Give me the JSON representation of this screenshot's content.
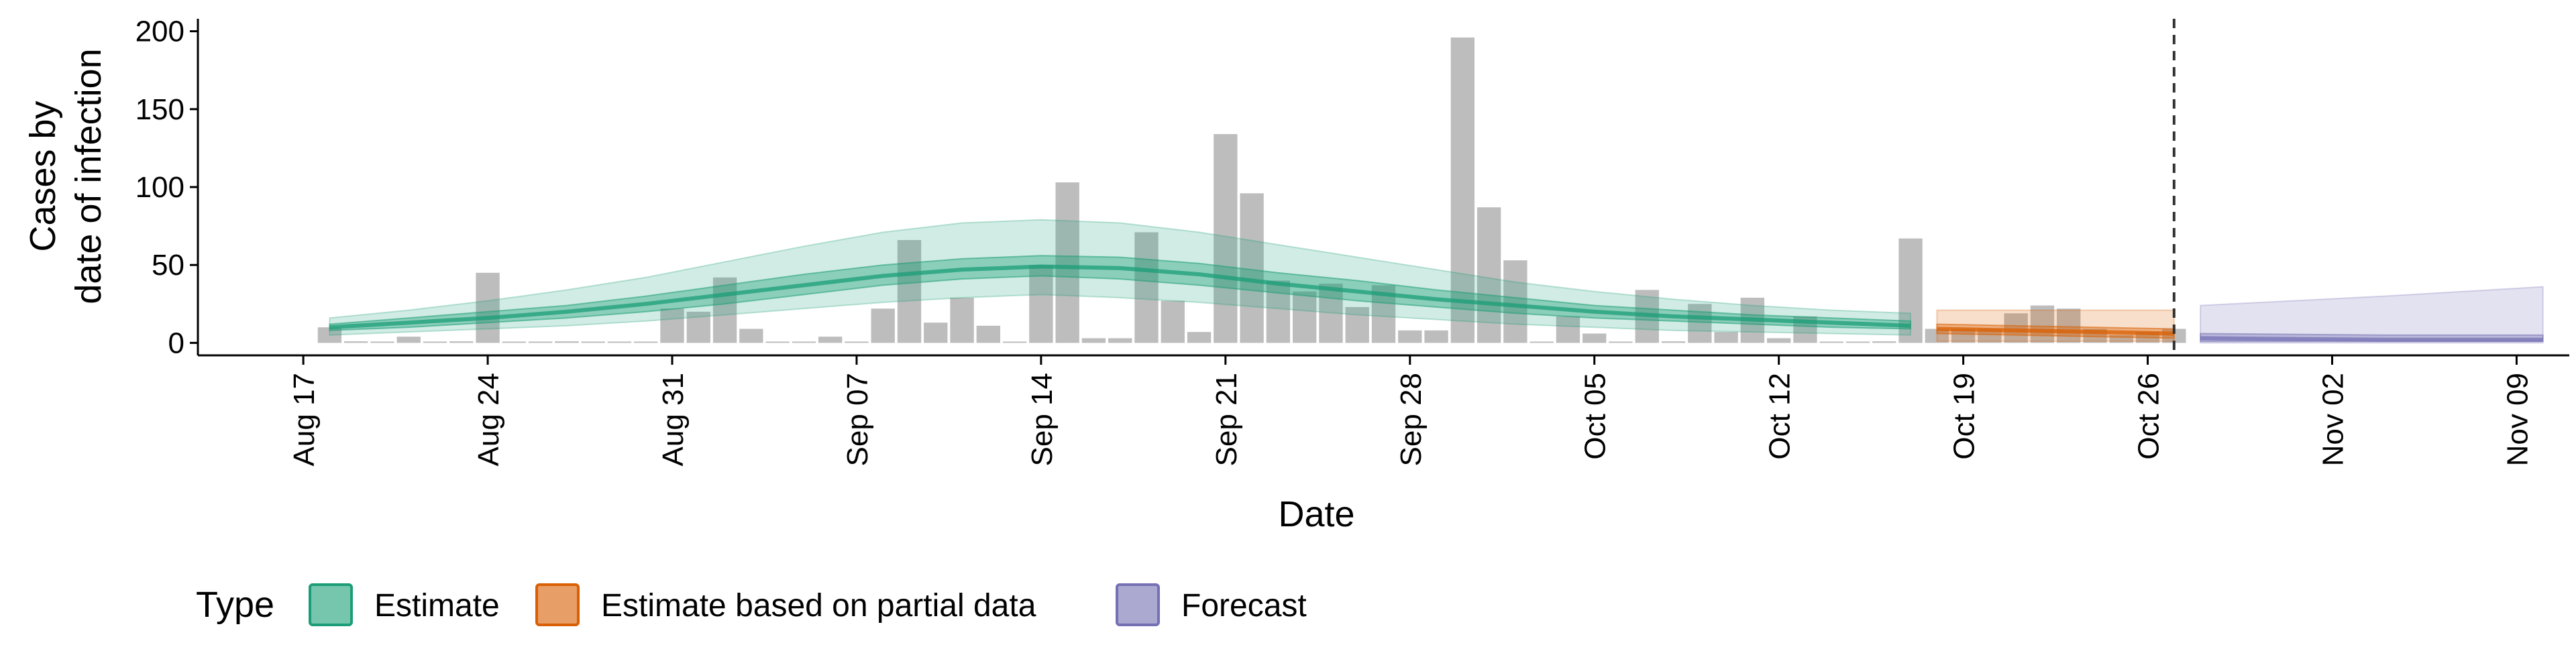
{
  "chart_data": {
    "type": "bar",
    "xlabel": "Date",
    "ylabel_lines": [
      "Cases by",
      "date of infection"
    ],
    "ylim": [
      -8,
      208
    ],
    "y_ticks": [
      0,
      50,
      100,
      150,
      200
    ],
    "x_range_days": [
      -4,
      86
    ],
    "x_tick_labels": [
      "Aug 17",
      "Aug 24",
      "Aug 31",
      "Sep 07",
      "Sep 14",
      "Sep 21",
      "Sep 28",
      "Oct 05",
      "Oct 12",
      "Oct 19",
      "Oct 26",
      "Nov 02",
      "Nov 09"
    ],
    "x_tick_days": [
      0,
      7,
      14,
      21,
      28,
      35,
      42,
      49,
      56,
      63,
      70,
      77,
      84
    ],
    "grid": false,
    "legend": {
      "title": "Type",
      "position": "bottom",
      "entries": [
        {
          "label": "Estimate",
          "fill": "#1b9e77",
          "alpha": 0.6
        },
        {
          "label": "Estimate based on partial data",
          "fill": "#d95f02",
          "alpha": 0.6
        },
        {
          "label": "Forecast",
          "fill": "#7570b3",
          "alpha": 0.6
        }
      ]
    },
    "colors": {
      "bars": "#bdbdbd",
      "estimate": "#1b9e77",
      "partial": "#d95f02",
      "forecast": "#7570b3",
      "vline": "#333333"
    },
    "reported_cases": {
      "dates": [
        "Aug 18",
        "Aug 19",
        "Aug 20",
        "Aug 21",
        "Aug 22",
        "Aug 23",
        "Aug 24",
        "Aug 25",
        "Aug 26",
        "Aug 27",
        "Aug 28",
        "Aug 29",
        "Aug 30",
        "Aug 31",
        "Sep 01",
        "Sep 02",
        "Sep 03",
        "Sep 04",
        "Sep 05",
        "Sep 06",
        "Sep 07",
        "Sep 08",
        "Sep 09",
        "Sep 10",
        "Sep 11",
        "Sep 12",
        "Sep 13",
        "Sep 14",
        "Sep 15",
        "Sep 16",
        "Sep 17",
        "Sep 18",
        "Sep 19",
        "Sep 20",
        "Sep 21",
        "Sep 22",
        "Sep 23",
        "Sep 24",
        "Sep 25",
        "Sep 26",
        "Sep 27",
        "Sep 28",
        "Sep 29",
        "Sep 30",
        "Oct 01",
        "Oct 02",
        "Oct 03",
        "Oct 04",
        "Oct 05",
        "Oct 06",
        "Oct 07",
        "Oct 08",
        "Oct 09",
        "Oct 10",
        "Oct 11",
        "Oct 12",
        "Oct 13",
        "Oct 14",
        "Oct 15",
        "Oct 16",
        "Oct 17",
        "Oct 18",
        "Oct 19",
        "Oct 20",
        "Oct 21",
        "Oct 22",
        "Oct 23",
        "Oct 24",
        "Oct 25",
        "Oct 26",
        "Oct 27"
      ],
      "values": [
        10,
        1,
        0,
        4,
        0,
        1,
        45,
        0,
        0,
        1,
        0,
        0,
        0,
        22,
        20,
        42,
        9,
        0,
        0,
        4,
        0,
        22,
        66,
        13,
        29,
        11,
        0,
        50,
        103,
        3,
        3,
        71,
        27,
        7,
        134,
        96,
        40,
        33,
        38,
        23,
        37,
        8,
        8,
        196,
        87,
        53,
        0,
        17,
        6,
        0,
        34,
        1,
        25,
        7,
        29,
        3,
        17,
        0,
        0,
        1,
        67,
        9,
        9,
        9,
        19,
        24,
        22,
        9,
        5,
        7,
        9
      ]
    },
    "estimate": {
      "dates": [
        "Aug 18",
        "Aug 21",
        "Aug 24",
        "Aug 27",
        "Aug 30",
        "Sep 02",
        "Sep 05",
        "Sep 08",
        "Sep 11",
        "Sep 14",
        "Sep 17",
        "Sep 20",
        "Sep 23",
        "Sep 26",
        "Sep 29",
        "Oct 02",
        "Oct 05",
        "Oct 08",
        "Oct 11",
        "Oct 14",
        "Oct 17"
      ],
      "median": [
        10,
        13,
        16,
        20,
        25,
        31,
        37,
        43,
        47,
        49,
        48,
        44,
        38,
        33,
        28,
        24,
        20,
        17,
        15,
        13,
        11
      ],
      "lower_50": [
        8,
        10,
        13,
        16,
        20,
        25,
        31,
        37,
        41,
        43,
        41,
        37,
        32,
        27,
        23,
        19,
        16,
        14,
        12,
        10,
        9
      ],
      "upper_50": [
        12,
        16,
        20,
        24,
        30,
        37,
        44,
        50,
        54,
        56,
        55,
        51,
        45,
        40,
        34,
        29,
        24,
        21,
        18,
        16,
        14
      ],
      "lower_90": [
        5,
        7,
        9,
        11,
        14,
        18,
        22,
        26,
        29,
        31,
        29,
        26,
        22,
        18,
        15,
        12,
        10,
        8,
        7,
        6,
        5
      ],
      "upper_90": [
        16,
        21,
        27,
        34,
        42,
        52,
        62,
        71,
        77,
        79,
        77,
        71,
        63,
        55,
        47,
        39,
        33,
        28,
        24,
        21,
        19
      ]
    },
    "partial": {
      "dates": [
        "Oct 18",
        "Oct 21",
        "Oct 24",
        "Oct 27"
      ],
      "median": [
        9,
        8,
        7,
        6
      ],
      "lower_50": [
        6,
        5,
        4,
        3
      ],
      "upper_50": [
        12,
        11,
        10,
        9
      ],
      "lower_90": [
        1,
        1,
        1,
        1
      ],
      "upper_90": [
        21,
        21,
        21,
        21
      ]
    },
    "forecast": {
      "dates": [
        "Oct 28",
        "Nov 04",
        "Nov 10"
      ],
      "median": [
        3,
        2,
        2
      ],
      "lower_50": [
        1,
        1,
        1
      ],
      "upper_50": [
        6,
        5,
        5
      ],
      "lower_90": [
        0,
        0,
        0
      ],
      "upper_90": [
        24,
        30,
        36
      ]
    },
    "reference_line_date": "Oct 27"
  }
}
